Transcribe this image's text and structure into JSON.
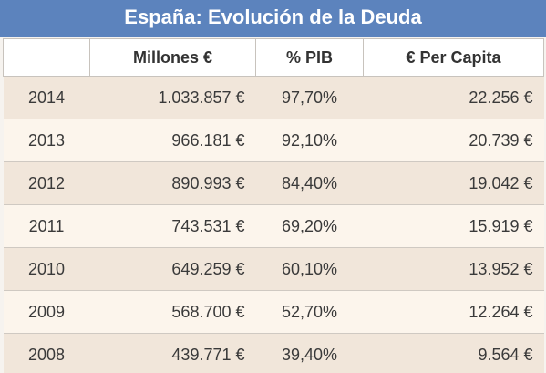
{
  "title": "España: Evolución de la Deuda",
  "colors": {
    "title_bar": "#5c83bd",
    "row_shade": "#f1e6da",
    "row_light": "#fcf5ec"
  },
  "chart_data": {
    "type": "table",
    "title": "España: Evolución de la Deuda",
    "columns": [
      "",
      "Millones €",
      "% PIB",
      "€ Per Capita"
    ],
    "rows": [
      {
        "year": "2014",
        "millones": "1.033.857 €",
        "pib": "97,70%",
        "capita": "22.256 €"
      },
      {
        "year": "2013",
        "millones": "966.181 €",
        "pib": "92,10%",
        "capita": "20.739 €"
      },
      {
        "year": "2012",
        "millones": "890.993 €",
        "pib": "84,40%",
        "capita": "19.042 €"
      },
      {
        "year": "2011",
        "millones": "743.531 €",
        "pib": "69,20%",
        "capita": "15.919 €"
      },
      {
        "year": "2010",
        "millones": "649.259 €",
        "pib": "60,10%",
        "capita": "13.952 €"
      },
      {
        "year": "2009",
        "millones": "568.700 €",
        "pib": "52,70%",
        "capita": "12.264 €"
      },
      {
        "year": "2008",
        "millones": "439.771 €",
        "pib": "39,40%",
        "capita": "9.564 €"
      }
    ]
  }
}
